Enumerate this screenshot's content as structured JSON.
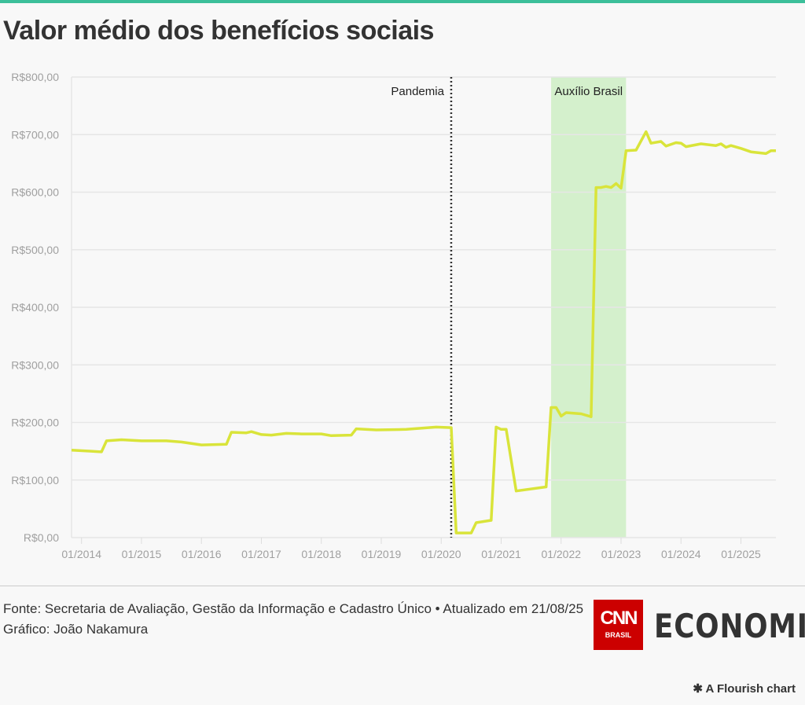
{
  "title": "Valor médio dos benefícios sociais",
  "colors": {
    "accent_bar": "#3cbf9a",
    "line": "#d9e43a",
    "band": "#d4f0cc",
    "cnn_red": "#cc0000"
  },
  "chart_data": {
    "type": "line",
    "title": "Valor médio dos benefícios sociais",
    "xlabel": "",
    "ylabel": "",
    "ylim": [
      0,
      800
    ],
    "y_ticks": [
      "R$0,00",
      "R$100,00",
      "R$200,00",
      "R$300,00",
      "R$400,00",
      "R$500,00",
      "R$600,00",
      "R$700,00",
      "R$800,00"
    ],
    "y_tick_values": [
      0,
      100,
      200,
      300,
      400,
      500,
      600,
      700,
      800
    ],
    "x_ticks": [
      "01/2014",
      "01/2015",
      "01/2016",
      "01/2017",
      "01/2018",
      "01/2019",
      "01/2020",
      "01/2021",
      "01/2022",
      "01/2023",
      "01/2024",
      "01/2025"
    ],
    "grid": true,
    "annotations": [
      {
        "type": "vline",
        "date": "2020-03",
        "label": "Pandemia"
      },
      {
        "type": "band",
        "from": "2021-11",
        "to": "2023-02",
        "label": "Auxílio Brasil"
      }
    ],
    "series": [
      {
        "name": "Valor médio",
        "points": [
          [
            "2013-11",
            152
          ],
          [
            "2014-03",
            150
          ],
          [
            "2014-05",
            149
          ],
          [
            "2014-06",
            168
          ],
          [
            "2014-09",
            170
          ],
          [
            "2015-01",
            168
          ],
          [
            "2015-06",
            168
          ],
          [
            "2015-09",
            166
          ],
          [
            "2016-01",
            161
          ],
          [
            "2016-06",
            162
          ],
          [
            "2016-07",
            183
          ],
          [
            "2016-10",
            182
          ],
          [
            "2016-11",
            184
          ],
          [
            "2017-01",
            179
          ],
          [
            "2017-03",
            178
          ],
          [
            "2017-06",
            181
          ],
          [
            "2017-09",
            180
          ],
          [
            "2018-01",
            180
          ],
          [
            "2018-03",
            177
          ],
          [
            "2018-07",
            178
          ],
          [
            "2018-08",
            189
          ],
          [
            "2018-12",
            187
          ],
          [
            "2019-06",
            188
          ],
          [
            "2019-12",
            192
          ],
          [
            "2020-03",
            191
          ],
          [
            "2020-04",
            8
          ],
          [
            "2020-07",
            8
          ],
          [
            "2020-08",
            26
          ],
          [
            "2020-11",
            30
          ],
          [
            "2020-12",
            192
          ],
          [
            "2021-01",
            188
          ],
          [
            "2021-02",
            188
          ],
          [
            "2021-04",
            81
          ],
          [
            "2021-10",
            88
          ],
          [
            "2021-11",
            226
          ],
          [
            "2021-12",
            226
          ],
          [
            "2022-01",
            211
          ],
          [
            "2022-02",
            217
          ],
          [
            "2022-05",
            215
          ],
          [
            "2022-07",
            210
          ],
          [
            "2022-08",
            608
          ],
          [
            "2022-09",
            608
          ],
          [
            "2022-10",
            610
          ],
          [
            "2022-11",
            608
          ],
          [
            "2022-12",
            615
          ],
          [
            "2023-01",
            607
          ],
          [
            "2023-02",
            672
          ],
          [
            "2023-04",
            673
          ],
          [
            "2023-06",
            705
          ],
          [
            "2023-07",
            685
          ],
          [
            "2023-09",
            688
          ],
          [
            "2023-10",
            680
          ],
          [
            "2023-12",
            686
          ],
          [
            "2024-01",
            685
          ],
          [
            "2024-02",
            679
          ],
          [
            "2024-05",
            684
          ],
          [
            "2024-08",
            681
          ],
          [
            "2024-09",
            684
          ],
          [
            "2024-10",
            678
          ],
          [
            "2024-11",
            681
          ],
          [
            "2025-01",
            676
          ],
          [
            "2025-03",
            670
          ],
          [
            "2025-06",
            667
          ],
          [
            "2025-07",
            672
          ],
          [
            "2025-08",
            672
          ]
        ]
      }
    ]
  },
  "footer": {
    "source": "Fonte: Secretaria de Avaliação, Gestão da Informação e Cadastro Único • Atualizado em 21/08/25",
    "credit": "Gráfico: João Nakamura"
  },
  "logo": {
    "cnn": "CNN",
    "cnn_sub": "BRASIL",
    "economia": "ECONOMIA"
  },
  "flourish": "A Flourish chart"
}
